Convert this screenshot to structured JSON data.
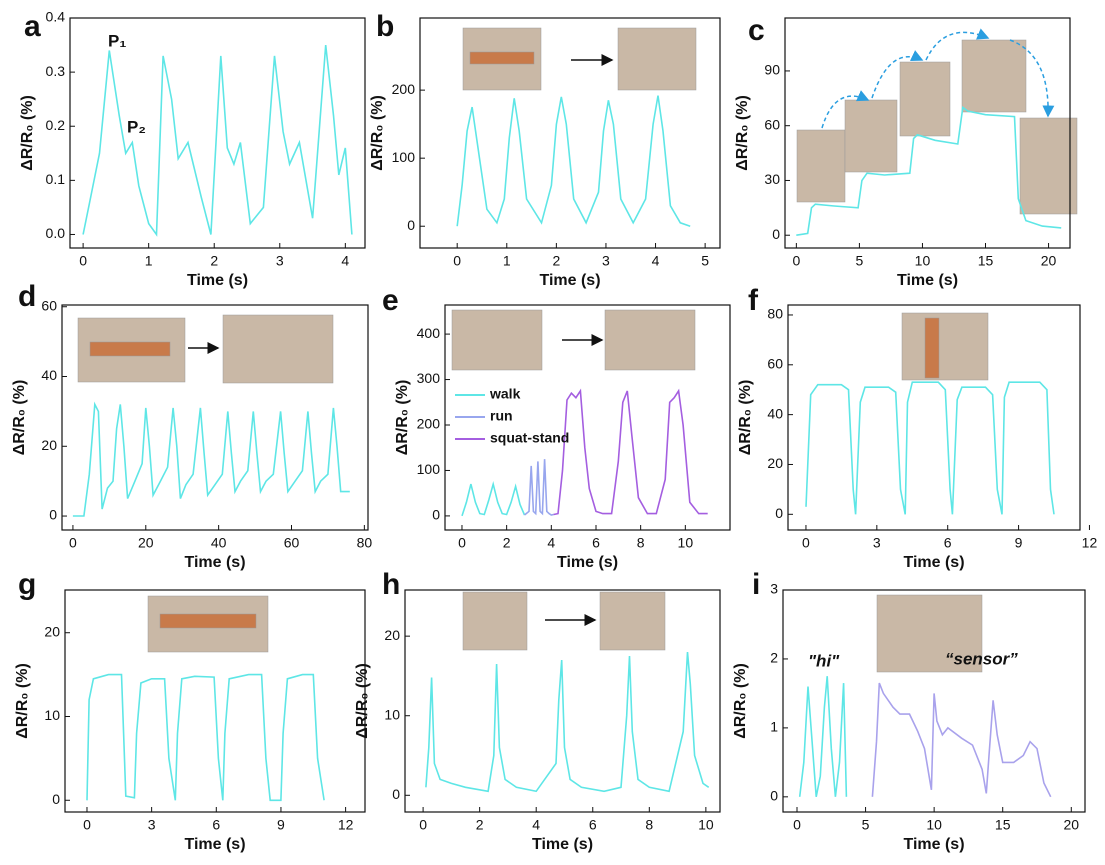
{
  "chart_data": [
    {
      "type": "line",
      "panel": "a",
      "xlabel": "Time (s)",
      "ylabel": "ΔR/R₀ (%)",
      "xlim": [
        -0.2,
        4.3
      ],
      "ylim": [
        -0.025,
        0.4
      ],
      "xticks": [
        0,
        1,
        2,
        3,
        4
      ],
      "yticks": [
        {
          "value": 0,
          "label": "0.0"
        },
        0.1,
        0.2,
        0.3,
        0.4
      ],
      "annotations": [
        "P₁",
        "P₂"
      ],
      "annotation_color": "#e02020",
      "series": [
        {
          "color": "#5ee6e6",
          "x": [
            0,
            0.1,
            0.25,
            0.4,
            0.55,
            0.65,
            0.75,
            0.85,
            1.0,
            1.12,
            1.22,
            1.35,
            1.45,
            1.6,
            1.8,
            1.95,
            2.1,
            2.2,
            2.3,
            2.4,
            2.55,
            2.75,
            2.92,
            3.05,
            3.15,
            3.3,
            3.5,
            3.7,
            3.82,
            3.9,
            4.0,
            4.1
          ],
          "values": [
            0,
            0.06,
            0.15,
            0.34,
            0.22,
            0.15,
            0.17,
            0.09,
            0.02,
            0,
            0.33,
            0.25,
            0.14,
            0.17,
            0.07,
            0,
            0.33,
            0.16,
            0.13,
            0.17,
            0.02,
            0.05,
            0.33,
            0.19,
            0.13,
            0.17,
            0.03,
            0.35,
            0.22,
            0.11,
            0.16,
            0
          ]
        }
      ]
    },
    {
      "type": "line",
      "panel": "b",
      "xlabel": "Time (s)",
      "ylabel": "ΔR/R₀ (%)",
      "xlim": [
        -0.75,
        5.3
      ],
      "ylim": [
        -32,
        306
      ],
      "xticks": [
        0,
        1,
        2,
        3,
        4,
        5
      ],
      "yticks": [
        0,
        100,
        200
      ],
      "series": [
        {
          "color": "#5ee6e6",
          "x": [
            0,
            0.1,
            0.2,
            0.3,
            0.45,
            0.6,
            0.8,
            0.95,
            1.05,
            1.15,
            1.25,
            1.4,
            1.7,
            1.9,
            2.0,
            2.1,
            2.2,
            2.35,
            2.6,
            2.85,
            2.95,
            3.05,
            3.15,
            3.3,
            3.55,
            3.8,
            3.95,
            4.05,
            4.15,
            4.3,
            4.5,
            4.7
          ],
          "values": [
            0,
            60,
            140,
            175,
            100,
            25,
            5,
            40,
            130,
            188,
            140,
            40,
            5,
            60,
            150,
            190,
            150,
            40,
            5,
            50,
            140,
            185,
            150,
            40,
            5,
            40,
            150,
            192,
            140,
            30,
            5,
            0
          ]
        }
      ]
    },
    {
      "type": "line",
      "panel": "c",
      "xlabel": "Time (s)",
      "ylabel": "ΔR/R₀ (%)",
      "xlim": [
        -0.9,
        21.7
      ],
      "ylim": [
        -7,
        119
      ],
      "xticks": [
        0,
        5,
        10,
        15,
        20
      ],
      "yticks": [
        0,
        30,
        60,
        90
      ],
      "series": [
        {
          "color": "#5ee6e6",
          "x": [
            0,
            0.9,
            1.2,
            1.5,
            3,
            4.9,
            5.2,
            5.6,
            7,
            9.0,
            9.3,
            9.6,
            11,
            12.8,
            13.2,
            13.6,
            15,
            17.3,
            17.6,
            18.2,
            19.5,
            21
          ],
          "values": [
            0,
            1,
            15,
            17,
            16,
            15,
            30,
            34,
            33,
            34,
            53,
            55,
            52,
            50,
            70,
            68,
            66,
            65,
            20,
            8,
            5,
            4
          ]
        }
      ]
    },
    {
      "type": "line",
      "panel": "d",
      "xlabel": "Time (s)",
      "ylabel": "ΔR/R₀ (%)",
      "xlim": [
        -3,
        81
      ],
      "ylim": [
        -4,
        60.5
      ],
      "xticks": [
        0,
        20,
        40,
        60,
        80
      ],
      "yticks": [
        0,
        20,
        40,
        60
      ],
      "series": [
        {
          "color": "#5ee6e6",
          "x": [
            0,
            3,
            4.5,
            6,
            7,
            8,
            9.5,
            11,
            12,
            13,
            14,
            15,
            17,
            19,
            20,
            21,
            22,
            24,
            26,
            27.5,
            28.5,
            29.5,
            31,
            33,
            35,
            36,
            37,
            39,
            41,
            42.5,
            43.5,
            44.5,
            46,
            48,
            49.5,
            50.5,
            51.5,
            53,
            55,
            57,
            58,
            59,
            61,
            63,
            64.5,
            65.5,
            66.5,
            68,
            70,
            71.5,
            72.5,
            73.5,
            75,
            76
          ],
          "values": [
            0,
            0,
            12,
            32,
            30,
            2,
            8,
            10,
            25,
            32,
            20,
            5,
            10,
            15,
            31,
            20,
            6,
            10,
            14,
            31,
            20,
            5,
            9,
            12,
            31,
            18,
            6,
            9,
            12,
            30,
            18,
            7,
            10,
            13,
            30,
            18,
            7,
            10,
            12,
            30,
            18,
            7,
            10,
            13,
            30,
            18,
            7,
            10,
            12,
            31,
            20,
            7,
            7,
            7
          ]
        }
      ]
    },
    {
      "type": "line",
      "panel": "e",
      "xlabel": "Time (s)",
      "ylabel": "ΔR/R₀ (%)",
      "xlim": [
        -0.76,
        12
      ],
      "ylim": [
        -31,
        464
      ],
      "xticks": [
        0,
        2,
        4,
        6,
        8,
        10
      ],
      "yticks": [
        0,
        100,
        200,
        300,
        400
      ],
      "series": [
        {
          "name": "walk",
          "color": "#5ee6e6",
          "x": [
            0,
            0.2,
            0.4,
            0.6,
            0.8,
            1.0,
            1.2,
            1.4,
            1.6,
            1.8,
            2.0,
            2.2,
            2.4,
            2.6,
            2.8
          ],
          "values": [
            0,
            30,
            70,
            30,
            5,
            3,
            35,
            70,
            30,
            5,
            3,
            30,
            65,
            25,
            2
          ]
        },
        {
          "name": "run",
          "color": "#98a6ee",
          "x": [
            2.8,
            3.0,
            3.1,
            3.2,
            3.3,
            3.4,
            3.5,
            3.6,
            3.7,
            3.8,
            3.9,
            4.0,
            4.1
          ],
          "values": [
            2,
            10,
            110,
            10,
            5,
            120,
            10,
            5,
            125,
            10,
            5,
            2,
            3
          ]
        },
        {
          "name": "squat-stand",
          "color": "#a45ee0",
          "x": [
            4.1,
            4.3,
            4.5,
            4.7,
            4.9,
            5.1,
            5.3,
            5.5,
            5.7,
            6.0,
            6.3,
            6.7,
            7.0,
            7.2,
            7.4,
            7.6,
            7.9,
            8.3,
            8.7,
            9.1,
            9.3,
            9.5,
            9.7,
            9.9,
            10.2,
            10.6,
            11
          ],
          "values": [
            3,
            5,
            100,
            255,
            270,
            260,
            275,
            150,
            60,
            10,
            5,
            5,
            120,
            250,
            275,
            180,
            40,
            5,
            5,
            80,
            250,
            260,
            275,
            200,
            30,
            5,
            5
          ]
        }
      ]
    },
    {
      "type": "line",
      "panel": "f",
      "xlabel": "Time (s)",
      "ylabel": "ΔR/R₀ (%)",
      "xlim": [
        -0.76,
        11.6
      ],
      "ylim": [
        -6.3,
        84
      ],
      "xticks": [
        0,
        3,
        6,
        9,
        12
      ],
      "yticks": [
        0,
        20,
        40,
        60,
        80
      ],
      "series": [
        {
          "color": "#5ee6e6",
          "x": [
            0,
            0.2,
            0.5,
            1.5,
            1.8,
            2.0,
            2.1,
            2.3,
            2.5,
            3.5,
            3.8,
            4.0,
            4.2,
            4.3,
            4.5,
            5.6,
            5.9,
            6.1,
            6.2,
            6.4,
            6.6,
            7.6,
            7.9,
            8.1,
            8.3,
            8.4,
            8.6,
            9.9,
            10.2,
            10.35,
            10.5
          ],
          "values": [
            3,
            48,
            52,
            52,
            50,
            10,
            0,
            45,
            51,
            51,
            49,
            10,
            0,
            45,
            53,
            53,
            50,
            10,
            0,
            46,
            51,
            51,
            48,
            10,
            0,
            47,
            53,
            53,
            50,
            10,
            0
          ]
        }
      ]
    },
    {
      "type": "line",
      "panel": "g",
      "xlabel": "Time (s)",
      "ylabel": "ΔR/R₀ (%)",
      "xlim": [
        -1.02,
        12.9
      ],
      "ylim": [
        -1.4,
        25.1
      ],
      "xticks": [
        0,
        3,
        6,
        9,
        12
      ],
      "yticks": [
        0,
        10,
        20
      ],
      "series": [
        {
          "color": "#5ee6e6",
          "x": [
            0,
            0.1,
            0.3,
            1.0,
            1.6,
            1.7,
            1.8,
            2.2,
            2.3,
            2.5,
            3.0,
            3.6,
            3.8,
            4.1,
            4.2,
            4.4,
            5.0,
            5.9,
            6.1,
            6.3,
            6.4,
            6.6,
            7.5,
            8.1,
            8.3,
            8.5,
            9.0,
            9.1,
            9.3,
            10.0,
            10.5,
            10.7,
            11.0
          ],
          "values": [
            0,
            12,
            14.5,
            15,
            15,
            8,
            0.5,
            0.3,
            8,
            14,
            14.5,
            14.5,
            5,
            0,
            8,
            14.5,
            14.8,
            14.7,
            5,
            0,
            8,
            14.5,
            15,
            15,
            5,
            0,
            0,
            8,
            14.5,
            15,
            15,
            5,
            0
          ]
        }
      ]
    },
    {
      "type": "line",
      "panel": "h",
      "xlabel": "Time (s)",
      "ylabel": "ΔR/R₀ (%)",
      "xlim": [
        -0.64,
        10.5
      ],
      "ylim": [
        -2.1,
        25.8
      ],
      "xticks": [
        0,
        2,
        4,
        6,
        8,
        10
      ],
      "yticks": [
        0,
        10,
        20
      ],
      "series": [
        {
          "color": "#5ee6e6",
          "x": [
            0.1,
            0.2,
            0.3,
            0.4,
            0.6,
            1.0,
            1.5,
            2.3,
            2.5,
            2.6,
            2.7,
            2.9,
            3.3,
            4.0,
            4.7,
            4.8,
            4.9,
            5.0,
            5.2,
            5.6,
            6.4,
            7.0,
            7.2,
            7.3,
            7.4,
            7.6,
            8.0,
            8.7,
            9.2,
            9.35,
            9.45,
            9.6,
            9.9,
            10.1
          ],
          "values": [
            1,
            6,
            14.8,
            4,
            2,
            1.5,
            1,
            0.5,
            5,
            16.5,
            6,
            2,
            1,
            0.5,
            4,
            12,
            17,
            6,
            2,
            1,
            0.5,
            1,
            10,
            17.5,
            8,
            2,
            1,
            0.5,
            8,
            18,
            14,
            5,
            1.5,
            1
          ]
        }
      ]
    },
    {
      "type": "line",
      "panel": "i",
      "xlabel": "Time (s)",
      "ylabel": "ΔR/R₀ (%)",
      "xlim": [
        -1.02,
        21.0
      ],
      "ylim": [
        -0.22,
        3
      ],
      "xticks": [
        0,
        5,
        10,
        15,
        20
      ],
      "yticks": [
        0,
        1,
        2,
        3
      ],
      "series": [
        {
          "name": "\"hi\"",
          "color": "#5ee6e6",
          "x": [
            0.2,
            0.5,
            0.8,
            1.1,
            1.4,
            1.7,
            2.0,
            2.2,
            2.5,
            2.8,
            3.1,
            3.4,
            3.6
          ],
          "values": [
            0,
            0.5,
            1.6,
            0.8,
            0,
            0.3,
            1.3,
            1.75,
            0.7,
            0,
            0.5,
            1.65,
            0
          ]
        },
        {
          "name": "“sensor”",
          "color": "#a9a2ec",
          "x": [
            5.5,
            5.8,
            6.0,
            6.3,
            7,
            7.5,
            8.2,
            8.8,
            9.3,
            9.8,
            10.0,
            10.2,
            10.6,
            11,
            12,
            12.8,
            13.5,
            13.8,
            14.0,
            14.3,
            14.6,
            15,
            15.8,
            16.5,
            17,
            17.5,
            18,
            18.5
          ],
          "values": [
            0,
            0.8,
            1.65,
            1.5,
            1.3,
            1.2,
            1.2,
            0.95,
            0.7,
            0.1,
            1.5,
            1.1,
            0.9,
            1.0,
            0.85,
            0.75,
            0.4,
            0.05,
            0.6,
            1.4,
            0.9,
            0.5,
            0.5,
            0.6,
            0.8,
            0.7,
            0.2,
            0
          ]
        }
      ]
    }
  ]
}
